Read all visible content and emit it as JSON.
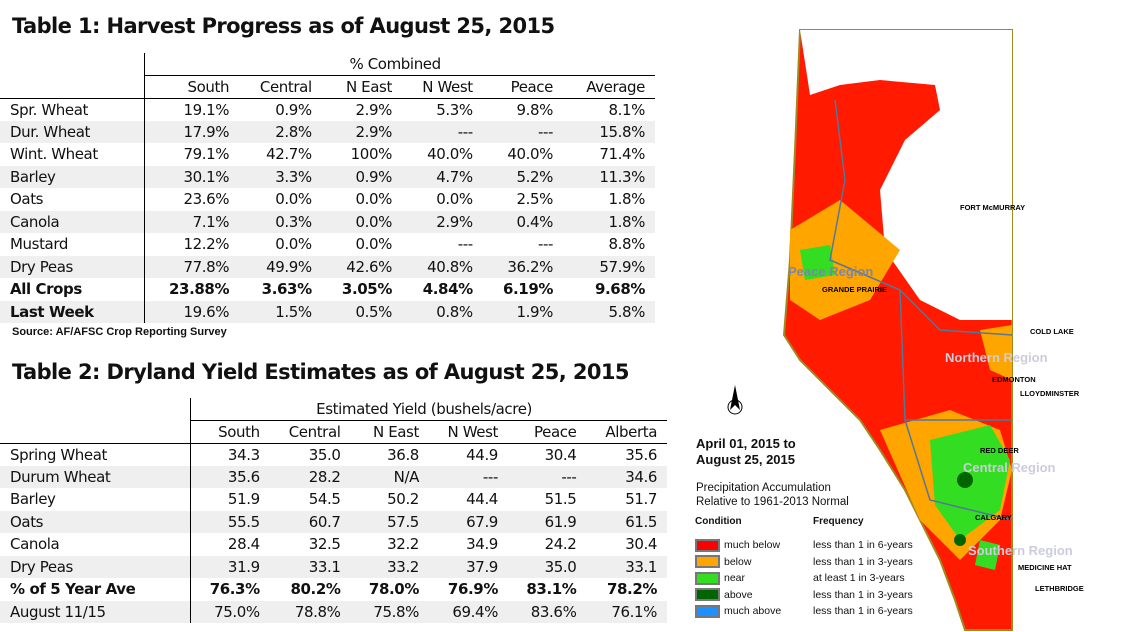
{
  "table1": {
    "title": "Table 1: Harvest Progress as of August 25, 2015",
    "group_header": "% Combined",
    "columns": [
      "South",
      "Central",
      "N East",
      "N West",
      "Peace",
      "Average"
    ],
    "rows": [
      {
        "label": "Spr. Wheat",
        "values": [
          "19.1%",
          "0.9%",
          "2.9%",
          "5.3%",
          "9.8%",
          "8.1%"
        ]
      },
      {
        "label": "Dur. Wheat",
        "values": [
          "17.9%",
          "2.8%",
          "2.9%",
          "---",
          "---",
          "15.8%"
        ]
      },
      {
        "label": "Wint. Wheat",
        "values": [
          "79.1%",
          "42.7%",
          "100%",
          "40.0%",
          "40.0%",
          "71.4%"
        ]
      },
      {
        "label": "Barley",
        "values": [
          "30.1%",
          "3.3%",
          "0.9%",
          "4.7%",
          "5.2%",
          "11.3%"
        ]
      },
      {
        "label": "Oats",
        "values": [
          "23.6%",
          "0.0%",
          "0.0%",
          "0.0%",
          "2.5%",
          "1.8%"
        ]
      },
      {
        "label": "Canola",
        "values": [
          "7.1%",
          "0.3%",
          "0.0%",
          "2.9%",
          "0.4%",
          "1.8%"
        ]
      },
      {
        "label": "Mustard",
        "values": [
          "12.2%",
          "0.0%",
          "0.0%",
          "---",
          "---",
          "8.8%"
        ]
      },
      {
        "label": "Dry Peas",
        "values": [
          "77.8%",
          "49.9%",
          "42.6%",
          "40.8%",
          "36.2%",
          "57.9%"
        ]
      },
      {
        "label": "All Crops",
        "values": [
          "23.88%",
          "3.63%",
          "3.05%",
          "4.84%",
          "6.19%",
          "9.68%"
        ],
        "bold": true
      },
      {
        "label": "Last Week",
        "values": [
          "19.6%",
          "1.5%",
          "0.5%",
          "0.8%",
          "1.9%",
          "5.8%"
        ],
        "bold_label": true
      }
    ],
    "source": "Source: AF/AFSC Crop Reporting Survey"
  },
  "table2": {
    "title": "Table 2: Dryland Yield Estimates as of August 25, 2015",
    "group_header": "Estimated Yield (bushels/acre)",
    "columns": [
      "South",
      "Central",
      "N East",
      "N West",
      "Peace",
      "Alberta"
    ],
    "rows": [
      {
        "label": "Spring Wheat",
        "values": [
          "34.3",
          "35.0",
          "36.8",
          "44.9",
          "30.4",
          "35.6"
        ]
      },
      {
        "label": "Durum Wheat",
        "values": [
          "35.6",
          "28.2",
          "N/A",
          "---",
          "---",
          "34.6"
        ]
      },
      {
        "label": "Barley",
        "values": [
          "51.9",
          "54.5",
          "50.2",
          "44.4",
          "51.5",
          "51.7"
        ]
      },
      {
        "label": "Oats",
        "values": [
          "55.5",
          "60.7",
          "57.5",
          "67.9",
          "61.9",
          "61.5"
        ]
      },
      {
        "label": "Canola",
        "values": [
          "28.4",
          "32.5",
          "32.2",
          "34.9",
          "24.2",
          "30.4"
        ]
      },
      {
        "label": "Dry Peas",
        "values": [
          "31.9",
          "33.1",
          "33.2",
          "37.9",
          "35.0",
          "33.1"
        ]
      },
      {
        "label": "% of 5 Year Ave",
        "values": [
          "76.3%",
          "80.2%",
          "78.0%",
          "76.9%",
          "83.1%",
          "78.2%"
        ],
        "bold": true
      },
      {
        "label": "August 11/15",
        "values": [
          "75.0%",
          "78.8%",
          "75.8%",
          "69.4%",
          "83.6%",
          "76.1%"
        ]
      }
    ]
  },
  "map": {
    "date_line1": "April 01, 2015 to",
    "date_line2": "August 25, 2015",
    "subtitle1": "Precipitation Accumulation",
    "subtitle2": "Relative to 1961-2013 Normal",
    "condition_header": "Condition",
    "frequency_header": "Frequency",
    "legend": [
      {
        "condition": "much below",
        "frequency": "less than 1 in 6-years",
        "color": "#ff0000"
      },
      {
        "condition": "below",
        "frequency": "less than 1 in 3-years",
        "color": "#ffa500"
      },
      {
        "condition": "near",
        "frequency": "at least 1 in 3-years",
        "color": "#33dd22"
      },
      {
        "condition": "above",
        "frequency": "less than 1 in 3-years",
        "color": "#006400"
      },
      {
        "condition": "much above",
        "frequency": "less than 1 in 6-years",
        "color": "#1e90ff"
      }
    ],
    "regions": [
      "Peace Region",
      "Northern Region",
      "Central Region",
      "Southern Region"
    ],
    "cities": [
      "FORT McMURRAY",
      "GRANDE PRAIRIE",
      "COLD LAKE",
      "EDMONTON",
      "LLOYDMINSTER",
      "RED DEER",
      "CALGARY",
      "MEDICINE HAT",
      "LETHBRIDGE"
    ]
  }
}
